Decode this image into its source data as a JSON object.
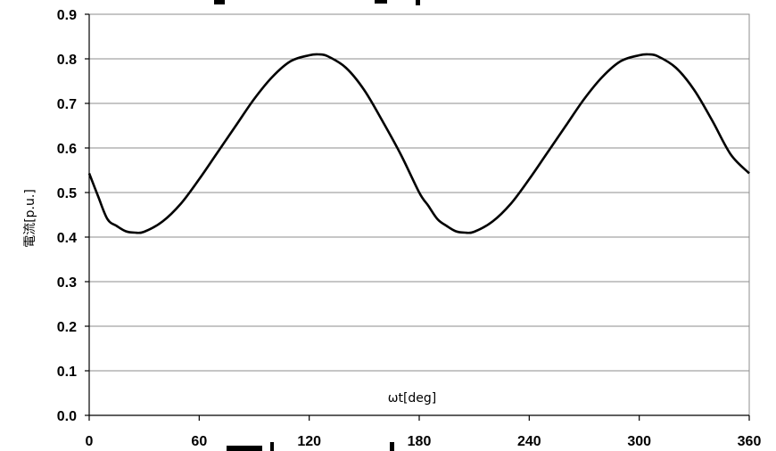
{
  "chart_data": {
    "type": "line",
    "title": "",
    "xlabel": "ωt[deg]",
    "ylabel": "電流[p.u.]",
    "xlim": [
      0,
      360
    ],
    "ylim": [
      0,
      0.9
    ],
    "xticks": [
      0,
      60,
      120,
      180,
      240,
      300,
      360
    ],
    "yticks": [
      0.0,
      0.1,
      0.2,
      0.3,
      0.4,
      0.5,
      0.6,
      0.7,
      0.8,
      0.9
    ],
    "xtick_labels": [
      "0",
      "60",
      "120",
      "180",
      "240",
      "300",
      "360"
    ],
    "ytick_labels": [
      "0.0",
      "0.1",
      "0.2",
      "0.3",
      "0.4",
      "0.5",
      "0.6",
      "0.7",
      "0.8",
      "0.9"
    ],
    "grid": "horizontal",
    "legend": "none",
    "series": [
      {
        "color": "#000000",
        "x": [
          0,
          5,
          10,
          15,
          20,
          25,
          30,
          40,
          50,
          60,
          70,
          80,
          90,
          100,
          110,
          120,
          125,
          130,
          140,
          150,
          160,
          170,
          180,
          185,
          190,
          195,
          200,
          205,
          210,
          220,
          230,
          240,
          250,
          260,
          270,
          280,
          290,
          300,
          305,
          310,
          320,
          330,
          340,
          350,
          360
        ],
        "y": [
          0.543,
          0.49,
          0.44,
          0.425,
          0.413,
          0.41,
          0.412,
          0.435,
          0.475,
          0.53,
          0.59,
          0.65,
          0.71,
          0.76,
          0.795,
          0.808,
          0.81,
          0.806,
          0.78,
          0.73,
          0.66,
          0.585,
          0.5,
          0.47,
          0.44,
          0.425,
          0.413,
          0.41,
          0.412,
          0.435,
          0.475,
          0.53,
          0.59,
          0.65,
          0.71,
          0.76,
          0.795,
          0.808,
          0.81,
          0.806,
          0.78,
          0.73,
          0.66,
          0.585,
          0.543
        ]
      }
    ]
  }
}
